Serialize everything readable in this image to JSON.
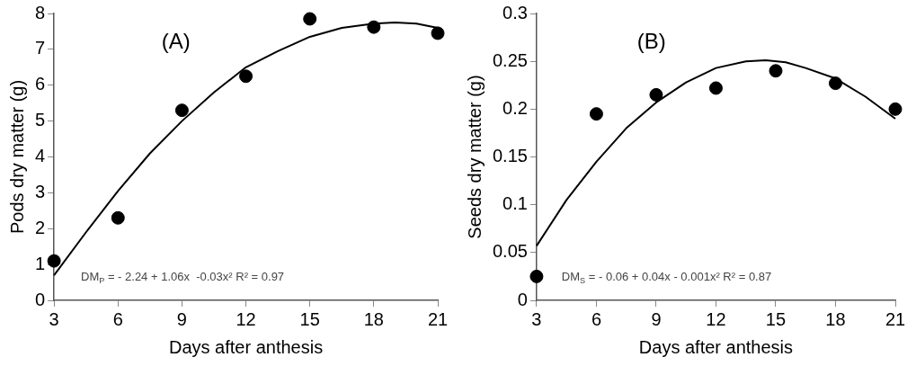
{
  "chart_data": [
    {
      "type": "scatter",
      "xlabel": "Days after anthesis",
      "ylabel": "Pods dry matter (g)",
      "annotations": [
        "(A)",
        "DM$_{P}$ = - 2.24 + 1.06x  -0.03x² R² = 0.97"
      ],
      "xlim": [
        3,
        21
      ],
      "xticks": [
        3,
        6,
        9,
        12,
        15,
        18,
        21
      ],
      "ylim": [
        0,
        8
      ],
      "yticks": [
        0,
        1,
        2,
        3,
        4,
        5,
        6,
        7,
        8
      ],
      "grid": false,
      "legend": false,
      "marker": "circle",
      "series": [
        {
          "type": "scatter",
          "color": "#000000",
          "x": [
            3,
            6,
            9,
            12,
            15,
            18,
            21
          ],
          "values": [
            1.1,
            2.3,
            5.3,
            6.25,
            7.85,
            7.62,
            7.45
          ]
        },
        {
          "type": "line",
          "color": "#000000",
          "marker": "none",
          "line_style": "solid",
          "x": [
            3,
            4.5,
            6,
            7.5,
            9,
            10.5,
            12,
            13.5,
            15,
            16.5,
            18,
            19,
            20,
            21
          ],
          "values": [
            0.7,
            1.9,
            3.05,
            4.1,
            5.0,
            5.8,
            6.5,
            6.95,
            7.35,
            7.6,
            7.72,
            7.75,
            7.72,
            7.6
          ]
        }
      ]
    },
    {
      "type": "scatter",
      "xlabel": "Days after anthesis",
      "ylabel": "Seeds dry matter (g)",
      "annotations": [
        "(B)",
        "DM$_{S}$ = - 0.06 + 0.04x - 0.001x² R² = 0.87"
      ],
      "xlim": [
        3,
        21
      ],
      "xticks": [
        3,
        6,
        9,
        12,
        15,
        18,
        21
      ],
      "ylim": [
        0,
        0.3
      ],
      "yticks": [
        0,
        0.05,
        0.1,
        0.15,
        0.2,
        0.25,
        0.3
      ],
      "grid": false,
      "legend": false,
      "marker": "circle",
      "series": [
        {
          "type": "scatter",
          "color": "#000000",
          "x": [
            3,
            6,
            9,
            12,
            15,
            18,
            21
          ],
          "values": [
            0.025,
            0.195,
            0.215,
            0.222,
            0.24,
            0.227,
            0.2
          ]
        },
        {
          "type": "line",
          "color": "#000000",
          "marker": "none",
          "line_style": "solid",
          "x": [
            3,
            4.5,
            6,
            7.5,
            9,
            10.5,
            12,
            13.5,
            14.5,
            15.5,
            16.5,
            18,
            19.5,
            21
          ],
          "values": [
            0.057,
            0.105,
            0.145,
            0.18,
            0.207,
            0.228,
            0.243,
            0.25,
            0.251,
            0.249,
            0.243,
            0.232,
            0.213,
            0.19
          ]
        }
      ]
    }
  ]
}
